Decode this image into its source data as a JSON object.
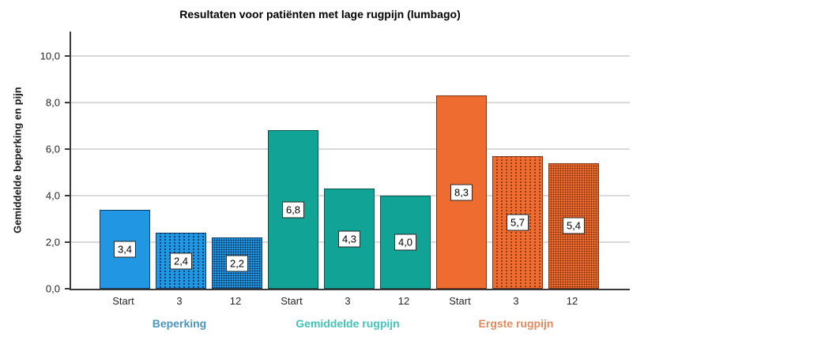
{
  "chart_data": {
    "type": "bar",
    "title": "Resultaten voor patiënten met lage rugpijn (lumbago)",
    "ylabel": "Gemiddelde beperking en pijn",
    "xlabel": "",
    "ylim": [
      0,
      10
    ],
    "grid": true,
    "legend_position": "none",
    "yticks": [
      {
        "value": 0,
        "label": "0,0"
      },
      {
        "value": 2,
        "label": "2,0"
      },
      {
        "value": 4,
        "label": "4,0"
      },
      {
        "value": 6,
        "label": "6,0"
      },
      {
        "value": 8,
        "label": "8,0"
      },
      {
        "value": 10,
        "label": "10,0"
      }
    ],
    "categories": [
      "Start",
      "3",
      "12"
    ],
    "groups": [
      {
        "name": "Beperking",
        "name_color": "#4e95bd",
        "fill": "#2196e3",
        "border": "#0e3c64",
        "dot": "#0a2d50",
        "bars": [
          {
            "x": "Start",
            "value": 3.4,
            "label": "3,4",
            "pattern": "solid"
          },
          {
            "x": "3",
            "value": 2.4,
            "label": "2,4",
            "pattern": "vdots"
          },
          {
            "x": "12",
            "value": 2.2,
            "label": "2,2",
            "pattern": "dots"
          }
        ]
      },
      {
        "name": "Gemiddelde rugpijn",
        "name_color": "#43c3b9",
        "fill": "#10a396",
        "border": "#06564e",
        "dot": "#06564e",
        "bars": [
          {
            "x": "Start",
            "value": 6.8,
            "label": "6,8",
            "pattern": "solid"
          },
          {
            "x": "3",
            "value": 4.3,
            "label": "4,3",
            "pattern": "solid"
          },
          {
            "x": "12",
            "value": 4.0,
            "label": "4,0",
            "pattern": "solid"
          }
        ]
      },
      {
        "name": "Ergste rugpijn",
        "name_color": "#e08a5e",
        "fill": "#ef6c30",
        "border": "#7e2f0d",
        "dot": "#7e2f0d",
        "bars": [
          {
            "x": "Start",
            "value": 8.3,
            "label": "8,3",
            "pattern": "solid"
          },
          {
            "x": "3",
            "value": 5.7,
            "label": "5,7",
            "pattern": "vdots"
          },
          {
            "x": "12",
            "value": 5.4,
            "label": "5,4",
            "pattern": "dots"
          }
        ]
      }
    ]
  }
}
